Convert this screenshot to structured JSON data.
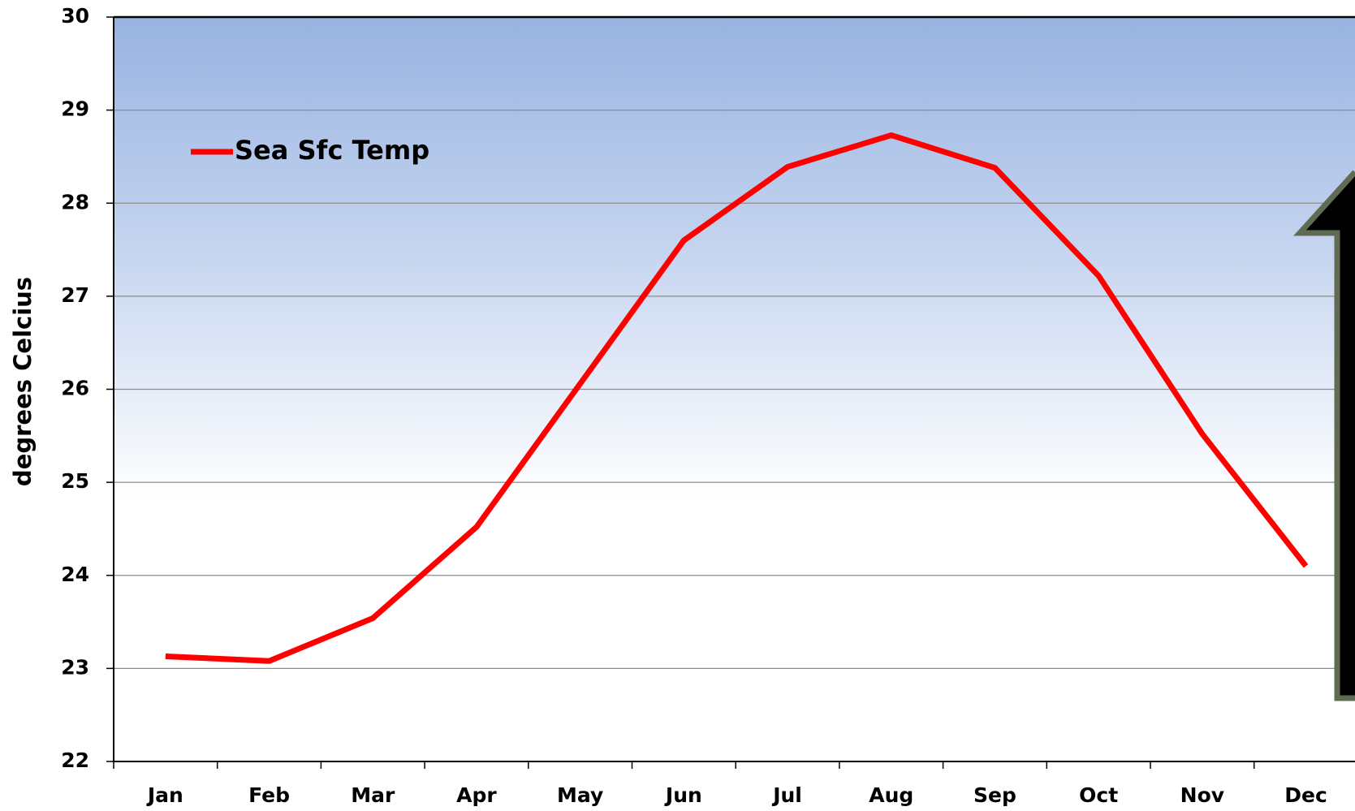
{
  "chart_data": {
    "type": "line",
    "y_label": "degrees Celcius",
    "categories": [
      "Jan",
      "Feb",
      "Mar",
      "Apr",
      "May",
      "Jun",
      "Jul",
      "Aug",
      "Sep",
      "Oct",
      "Nov",
      "Dec"
    ],
    "series": [
      {
        "name": "Sea Sfc Temp",
        "color": "#ff0000",
        "values": [
          23.13,
          23.08,
          23.54,
          24.52,
          26.06,
          27.6,
          28.39,
          28.73,
          28.38,
          27.22,
          25.52,
          24.1
        ]
      }
    ],
    "ylim": [
      22,
      30
    ],
    "yticks": [
      22,
      23,
      24,
      25,
      26,
      27,
      28,
      29,
      30
    ],
    "grid": true,
    "legend": "top-left"
  }
}
